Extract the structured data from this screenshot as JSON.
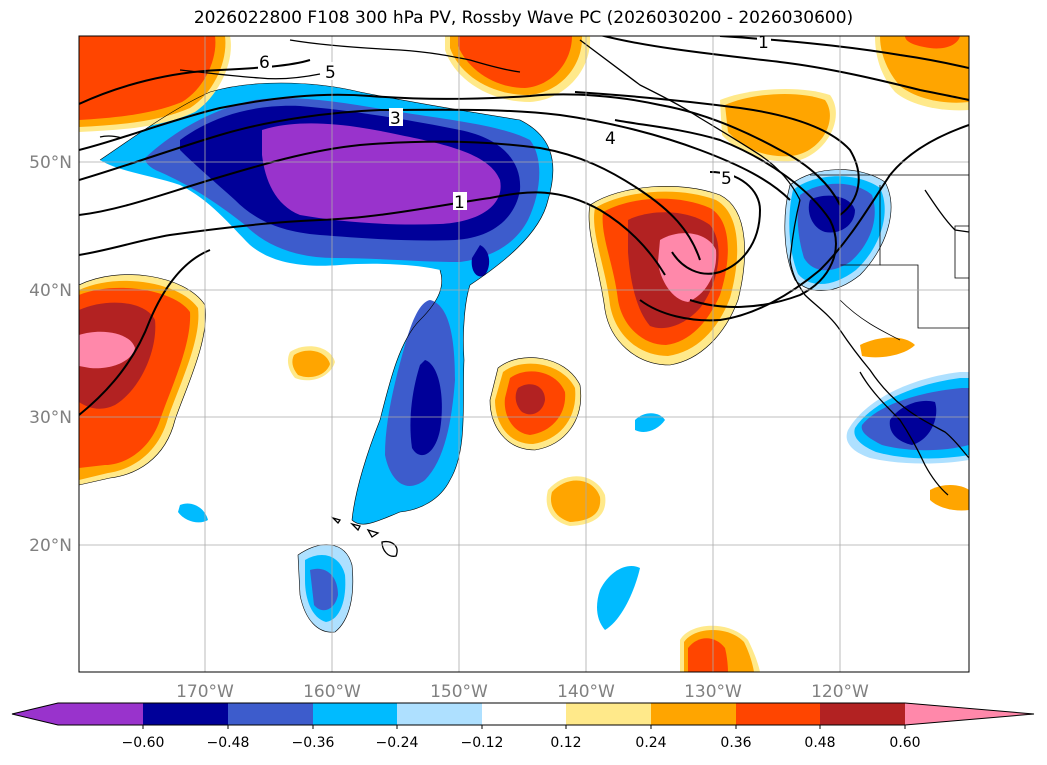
{
  "title": "2026022800 F108 300 hPa PV, Rossby Wave PC (2026030200 - 2026030600)",
  "lat_labels": [
    "50°N",
    "40°N",
    "30°N",
    "20°N"
  ],
  "lon_labels": [
    "170°W",
    "160°W",
    "150°W",
    "140°W",
    "130°W",
    "120°W"
  ],
  "contour_labels": [
    "6",
    "5",
    "3",
    "1",
    "4",
    "5",
    "1"
  ],
  "colorbar": {
    "ticks": [
      "−0.60",
      "−0.48",
      "−0.36",
      "−0.24",
      "−0.12",
      "0.12",
      "0.24",
      "0.36",
      "0.48",
      "0.60"
    ],
    "colors": [
      "#9933cc",
      "#000099",
      "#3d5ccc",
      "#00bbff",
      "#aee0ff",
      "#ffffff",
      "#ffe98a",
      "#ffa500",
      "#ff4500",
      "#b22222",
      "#ff88aa"
    ]
  }
}
